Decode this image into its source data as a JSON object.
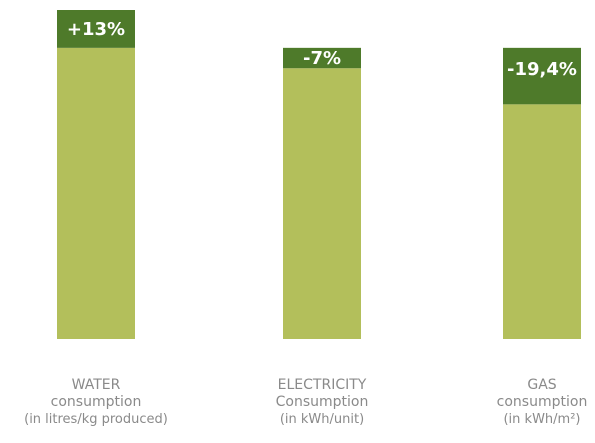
{
  "colors": {
    "base": "#b3bf5b",
    "change": "#4e7a2a",
    "label_text": "#ffffff",
    "category_text": "#8a8a8a"
  },
  "chart_data": {
    "type": "bar",
    "categories": [
      "WATER consumption (in litres/kg produced)",
      "ELECTRICITY Consumption (in kWh/unit)",
      "GAS consumption (in kWh/m²)"
    ],
    "labels": [
      {
        "line1": "WATER",
        "line2": "consumption",
        "line3": "(in litres/kg produced)"
      },
      {
        "line1": "ELECTRICITY",
        "line2": "Consumption",
        "line3": "(in kWh/unit)"
      },
      {
        "line1": "GAS",
        "line2": "consumption",
        "line3": "(in kWh/m²)"
      }
    ],
    "series": [
      {
        "values": [
          100,
          93,
          80.6
        ]
      },
      {
        "values": [
          13,
          7,
          19.4
        ]
      }
    ],
    "data_labels": [
      "+13%",
      "-7%",
      "-19,4%"
    ],
    "ylim": [
      0,
      113
    ],
    "legend": "none",
    "grid": false,
    "axes": "none"
  }
}
